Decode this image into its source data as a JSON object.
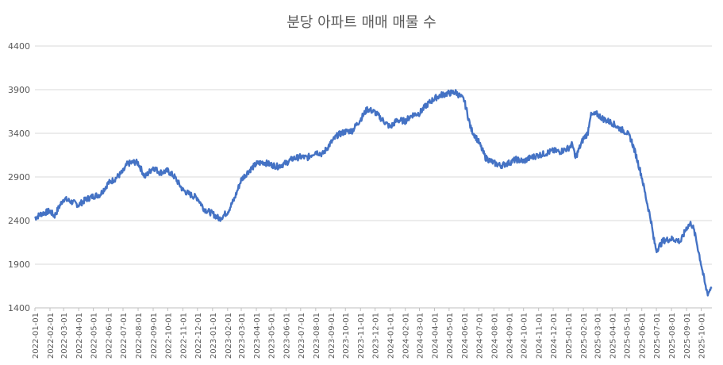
{
  "chart_data": {
    "type": "line",
    "title": "분당 아파트 매매 매물 수",
    "xlabel": "",
    "ylabel": "",
    "ylim": [
      1400,
      4400
    ],
    "yticks": [
      "1400",
      "1900",
      "2400",
      "2900",
      "3400",
      "3900",
      "4400"
    ],
    "grid": "horizontal",
    "legend": "none",
    "color": "#4472C4",
    "x_range": [
      "2022-01-01",
      "2025-10-23"
    ],
    "x_ticks": [
      "2022-01-01",
      "2022-02-01",
      "2022-03-01",
      "2022-04-01",
      "2022-05-01",
      "2022-06-01",
      "2022-07-01",
      "2022-08-01",
      "2022-09-01",
      "2022-10-01",
      "2022-11-01",
      "2022-12-01",
      "2023-01-01",
      "2023-02-01",
      "2023-03-01",
      "2023-04-01",
      "2023-05-01",
      "2023-06-01",
      "2023-07-01",
      "2023-08-01",
      "2023-09-01",
      "2023-10-01",
      "2023-11-01",
      "2023-12-01",
      "2024-01-01",
      "2024-02-01",
      "2024-03-01",
      "2024-04-01",
      "2024-05-01",
      "2024-06-01",
      "2024-07-01",
      "2024-08-01",
      "2024-09-01",
      "2024-10-01",
      "2024-11-01",
      "2024-12-01",
      "2025-01-01",
      "2025-02-01",
      "2025-03-01",
      "2025-04-01",
      "2025-05-01",
      "2025-06-01",
      "2025-07-01",
      "2025-08-01",
      "2025-09-01",
      "2025-10-01"
    ],
    "series": [
      {
        "x": [
          "2022-01-01",
          "2022-01-15",
          "2022-02-01",
          "2022-02-10",
          "2022-02-20",
          "2022-03-01",
          "2022-03-15",
          "2022-04-01",
          "2022-04-15",
          "2022-05-01",
          "2022-05-15",
          "2022-06-01",
          "2022-06-15",
          "2022-07-01",
          "2022-07-10",
          "2022-07-25",
          "2022-08-01",
          "2022-08-15",
          "2022-09-01",
          "2022-09-15",
          "2022-10-01",
          "2022-10-15",
          "2022-11-01",
          "2022-11-15",
          "2022-12-01",
          "2022-12-15",
          "2023-01-01",
          "2023-01-15",
          "2023-02-01",
          "2023-02-15",
          "2023-03-01",
          "2023-03-15",
          "2023-04-01",
          "2023-04-15",
          "2023-05-01",
          "2023-05-15",
          "2023-06-01",
          "2023-06-15",
          "2023-07-01",
          "2023-07-15",
          "2023-08-01",
          "2023-08-15",
          "2023-09-01",
          "2023-09-15",
          "2023-10-01",
          "2023-10-15",
          "2023-11-01",
          "2023-11-15",
          "2023-12-01",
          "2023-12-15",
          "2024-01-01",
          "2024-01-15",
          "2024-02-01",
          "2024-02-15",
          "2024-03-01",
          "2024-03-15",
          "2024-04-01",
          "2024-04-15",
          "2024-05-01",
          "2024-05-15",
          "2024-06-01",
          "2024-06-15",
          "2024-07-01",
          "2024-07-15",
          "2024-08-01",
          "2024-08-15",
          "2024-09-01",
          "2024-09-15",
          "2024-10-01",
          "2024-10-15",
          "2024-11-01",
          "2024-11-15",
          "2024-12-01",
          "2024-12-15",
          "2025-01-01",
          "2025-01-10",
          "2025-01-15",
          "2025-02-01",
          "2025-02-10",
          "2025-02-15",
          "2025-03-01",
          "2025-03-15",
          "2025-04-01",
          "2025-04-15",
          "2025-05-01",
          "2025-05-10",
          "2025-05-20",
          "2025-06-01",
          "2025-06-10",
          "2025-06-20",
          "2025-06-25",
          "2025-07-01",
          "2025-07-15",
          "2025-08-01",
          "2025-08-10",
          "2025-08-20",
          "2025-09-01",
          "2025-09-10",
          "2025-09-15",
          "2025-09-20",
          "2025-10-01",
          "2025-10-10",
          "2025-10-15",
          "2025-10-23"
        ],
        "y": [
          2430,
          2480,
          2510,
          2450,
          2560,
          2650,
          2620,
          2580,
          2640,
          2680,
          2700,
          2830,
          2880,
          2960,
          3050,
          3070,
          3060,
          2900,
          3010,
          2950,
          2970,
          2900,
          2750,
          2700,
          2660,
          2530,
          2480,
          2420,
          2500,
          2650,
          2870,
          2960,
          3050,
          3070,
          3040,
          3020,
          3060,
          3110,
          3130,
          3120,
          3190,
          3160,
          3290,
          3380,
          3420,
          3430,
          3560,
          3680,
          3640,
          3560,
          3470,
          3550,
          3540,
          3610,
          3630,
          3720,
          3800,
          3840,
          3860,
          3870,
          3780,
          3450,
          3300,
          3120,
          3060,
          3030,
          3060,
          3100,
          3080,
          3120,
          3150,
          3170,
          3200,
          3190,
          3230,
          3280,
          3110,
          3340,
          3400,
          3600,
          3620,
          3560,
          3520,
          3460,
          3410,
          3330,
          3150,
          2900,
          2650,
          2400,
          2200,
          2060,
          2170,
          2190,
          2180,
          2160,
          2320,
          2370,
          2310,
          2200,
          1900,
          1640,
          1560,
          1660
        ]
      }
    ]
  }
}
